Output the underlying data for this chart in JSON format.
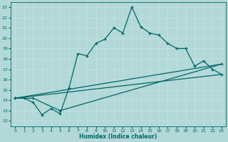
{
  "xlabel": "Humidex (Indice chaleur)",
  "bg_color": "#b2d8d8",
  "grid_color": "#d0e8e8",
  "line_color": "#006666",
  "xlim": [
    -0.5,
    23.5
  ],
  "ylim": [
    11.5,
    23.5
  ],
  "xticks": [
    0,
    1,
    2,
    3,
    4,
    5,
    6,
    7,
    8,
    9,
    10,
    11,
    12,
    13,
    14,
    15,
    16,
    17,
    18,
    19,
    20,
    21,
    22,
    23
  ],
  "yticks": [
    12,
    13,
    14,
    15,
    16,
    17,
    18,
    19,
    20,
    21,
    22,
    23
  ],
  "line1_x": [
    0,
    1,
    2,
    3,
    4,
    5,
    6,
    7,
    8,
    9,
    10,
    11,
    12,
    13,
    14,
    15,
    16,
    17,
    18,
    19,
    20,
    21,
    22,
    23
  ],
  "line1_y": [
    14.2,
    14.2,
    13.8,
    12.6,
    13.2,
    12.7,
    15.2,
    18.5,
    18.3,
    19.5,
    19.9,
    21.0,
    20.5,
    23.0,
    21.1,
    20.5,
    20.3,
    19.5,
    19.0,
    19.0,
    17.3,
    17.8,
    17.0,
    16.5
  ],
  "line2_x": [
    0,
    2,
    5,
    23
  ],
  "line2_y": [
    14.2,
    14.2,
    13.0,
    17.5
  ],
  "line3_x": [
    0,
    23
  ],
  "line3_y": [
    14.2,
    16.5
  ],
  "line4_x": [
    0,
    23
  ],
  "line4_y": [
    14.2,
    17.5
  ]
}
